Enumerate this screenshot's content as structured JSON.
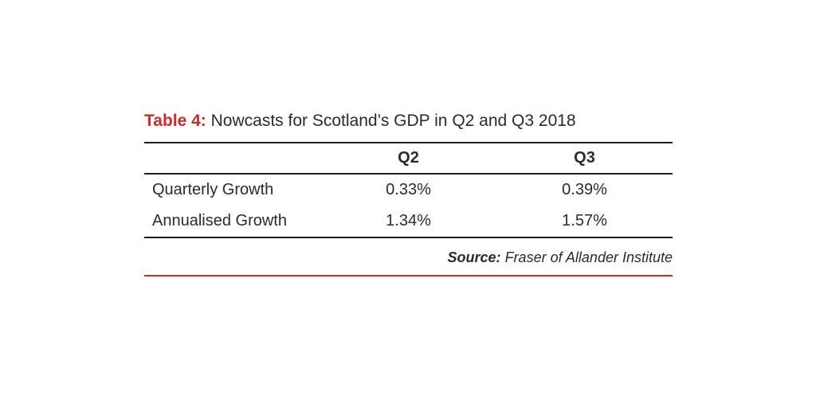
{
  "table": {
    "title_lead": "Table 4:",
    "title_text": " Nowcasts for Scotland’s GDP in Q2 and Q3 2018",
    "columns": [
      "",
      "Q2",
      "Q3"
    ],
    "rows": [
      {
        "label": "Quarterly Growth",
        "q2": "0.33%",
        "q3": "0.39%"
      },
      {
        "label": "Annualised Growth",
        "q2": "1.34%",
        "q3": "1.57%"
      }
    ],
    "source_lead": "Source:",
    "source_text": " Fraser of Allander Institute"
  },
  "colors": {
    "accent": "#cf2a27",
    "text": "#2b2b2b",
    "rule": "#1f1f1f"
  }
}
